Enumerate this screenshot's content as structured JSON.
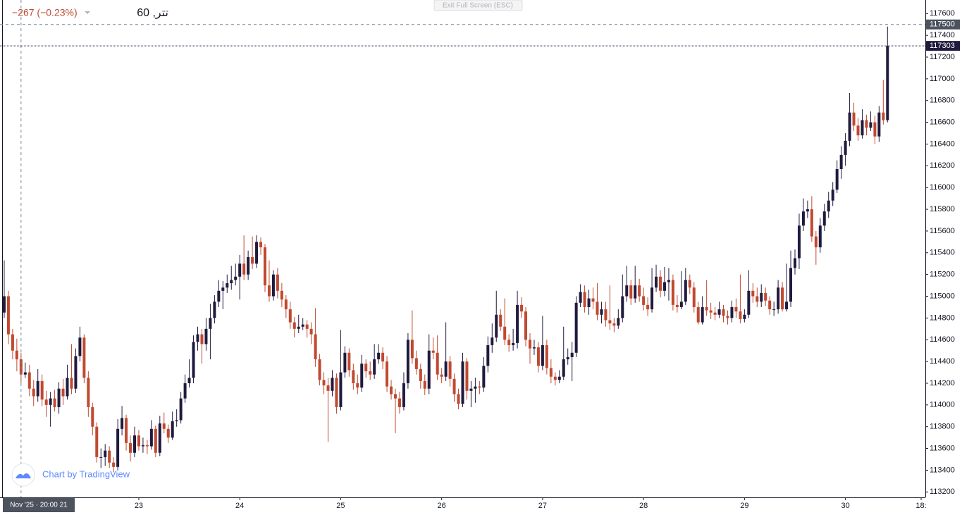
{
  "chart_data": {
    "type": "candlestick",
    "title": "تتر, 60",
    "change": "−267 (−0.23%)",
    "button": "Exit Full Screen (ESC)",
    "watermark": "Chart by TradingView",
    "up_color": "#1f1a3e",
    "down_color": "#c0492f",
    "ylim": [
      113150,
      117725
    ],
    "yticks": [
      113200,
      113400,
      113600,
      113800,
      114000,
      114200,
      114400,
      114600,
      114800,
      115000,
      115200,
      115400,
      115600,
      115800,
      116000,
      116200,
      116400,
      116600,
      116800,
      117000,
      117200,
      117400,
      117600
    ],
    "xlim": [
      -1,
      219
    ],
    "xticks": [
      {
        "value": 32,
        "label": "23"
      },
      {
        "value": 56,
        "label": "24"
      },
      {
        "value": 80,
        "label": "25"
      },
      {
        "value": 104,
        "label": "26"
      },
      {
        "value": 128,
        "label": "27"
      },
      {
        "value": 152,
        "label": "28"
      },
      {
        "value": 176,
        "label": "29"
      },
      {
        "value": 200,
        "label": "30"
      },
      {
        "value": 218,
        "label": "18:"
      }
    ],
    "crosshair": {
      "x": 4,
      "y": 117500,
      "label": "Nov '25 · 20:00 21"
    },
    "candles": [
      [
        114850,
        115330,
        114800,
        115000
      ],
      [
        115000,
        115050,
        114560,
        114650
      ],
      [
        114650,
        114700,
        114420,
        114500
      ],
      [
        114500,
        114610,
        114310,
        114420
      ],
      [
        114420,
        114480,
        114200,
        114280
      ],
      [
        114280,
        114390,
        114250,
        114300
      ],
      [
        114300,
        114370,
        114080,
        114150
      ],
      [
        114150,
        114230,
        113990,
        114080
      ],
      [
        114080,
        114330,
        114030,
        114220
      ],
      [
        114220,
        114280,
        113990,
        114050
      ],
      [
        114050,
        114130,
        113890,
        114000
      ],
      [
        114000,
        114120,
        113800,
        114060
      ],
      [
        114060,
        114140,
        113940,
        113980
      ],
      [
        113980,
        114210,
        113920,
        114150
      ],
      [
        114150,
        114240,
        114000,
        114080
      ],
      [
        114080,
        114370,
        114050,
        114250
      ],
      [
        114250,
        114560,
        114100,
        114150
      ],
      [
        114150,
        114520,
        114110,
        114450
      ],
      [
        114450,
        114720,
        114400,
        114620
      ],
      [
        114620,
        114650,
        114200,
        114250
      ],
      [
        114250,
        114310,
        113890,
        113980
      ],
      [
        113980,
        114020,
        113720,
        113800
      ],
      [
        113800,
        113840,
        113470,
        113520
      ],
      [
        113520,
        113600,
        113420,
        113520
      ],
      [
        113520,
        113640,
        113440,
        113580
      ],
      [
        113580,
        113620,
        113420,
        113470
      ],
      [
        113470,
        113520,
        113380,
        113430
      ],
      [
        113430,
        113870,
        113400,
        113780
      ],
      [
        113780,
        113990,
        113720,
        113880
      ],
      [
        113880,
        113910,
        113580,
        113650
      ],
      [
        113650,
        113720,
        113480,
        113560
      ],
      [
        113560,
        113800,
        113520,
        113720
      ],
      [
        113720,
        113770,
        113580,
        113620
      ],
      [
        113620,
        113700,
        113560,
        113630
      ],
      [
        113630,
        113680,
        113550,
        113620
      ],
      [
        113620,
        113860,
        113590,
        113780
      ],
      [
        113780,
        113810,
        113520,
        113560
      ],
      [
        113560,
        113900,
        113530,
        113830
      ],
      [
        113830,
        113930,
        113740,
        113780
      ],
      [
        113780,
        113820,
        113650,
        113700
      ],
      [
        113700,
        113940,
        113680,
        113850
      ],
      [
        113850,
        113960,
        113800,
        113860
      ],
      [
        113860,
        114120,
        113830,
        114060
      ],
      [
        114060,
        114280,
        114020,
        114200
      ],
      [
        114200,
        114420,
        114160,
        114250
      ],
      [
        114250,
        114640,
        114200,
        114580
      ],
      [
        114580,
        114720,
        114500,
        114650
      ],
      [
        114650,
        114700,
        114380,
        114560
      ],
      [
        114560,
        114800,
        114500,
        114700
      ],
      [
        114700,
        114930,
        114420,
        114800
      ],
      [
        114800,
        115010,
        114750,
        114950
      ],
      [
        114950,
        115150,
        114900,
        115050
      ],
      [
        115050,
        115140,
        114880,
        115080
      ],
      [
        115080,
        115200,
        115030,
        115120
      ],
      [
        115120,
        115280,
        115060,
        115150
      ],
      [
        115150,
        115300,
        115100,
        115180
      ],
      [
        115180,
        115380,
        114970,
        115300
      ],
      [
        115300,
        115560,
        115150,
        115200
      ],
      [
        115200,
        115420,
        115150,
        115360
      ],
      [
        115360,
        115550,
        115250,
        115300
      ],
      [
        115300,
        115560,
        115260,
        115500
      ],
      [
        115500,
        115540,
        115380,
        115450
      ],
      [
        115450,
        115480,
        115040,
        115100
      ],
      [
        115100,
        115330,
        114950,
        115000
      ],
      [
        115000,
        115240,
        114960,
        115200
      ],
      [
        115200,
        115260,
        114980,
        115050
      ],
      [
        115050,
        115120,
        114900,
        114970
      ],
      [
        114970,
        115010,
        114800,
        114880
      ],
      [
        114880,
        114950,
        114700,
        114760
      ],
      [
        114760,
        114810,
        114620,
        114700
      ],
      [
        114700,
        114830,
        114660,
        114720
      ],
      [
        114720,
        114800,
        114690,
        114740
      ],
      [
        114740,
        114780,
        114620,
        114700
      ],
      [
        114700,
        114760,
        114560,
        114650
      ],
      [
        114650,
        114890,
        114350,
        114420
      ],
      [
        114420,
        114470,
        114180,
        114230
      ],
      [
        114230,
        114300,
        114100,
        114180
      ],
      [
        114180,
        114250,
        113660,
        114130
      ],
      [
        114130,
        114320,
        114080,
        114250
      ],
      [
        114250,
        114290,
        113920,
        113980
      ],
      [
        113980,
        114690,
        113950,
        114300
      ],
      [
        114300,
        114540,
        114250,
        114480
      ],
      [
        114480,
        114520,
        114260,
        114320
      ],
      [
        114320,
        114380,
        114140,
        114200
      ],
      [
        114200,
        114280,
        114100,
        114160
      ],
      [
        114160,
        114460,
        114120,
        114380
      ],
      [
        114380,
        114420,
        114250,
        114310
      ],
      [
        114310,
        114400,
        114230,
        114280
      ],
      [
        114280,
        114560,
        114240,
        114420
      ],
      [
        114420,
        114560,
        114380,
        114480
      ],
      [
        114480,
        114530,
        114330,
        114400
      ],
      [
        114400,
        114450,
        114120,
        114170
      ],
      [
        114170,
        114230,
        114050,
        114100
      ],
      [
        114100,
        114150,
        113740,
        114060
      ],
      [
        114060,
        114120,
        113920,
        113980
      ],
      [
        113980,
        114300,
        113950,
        114200
      ],
      [
        114200,
        114660,
        114150,
        114600
      ],
      [
        114600,
        114870,
        114380,
        114430
      ],
      [
        114430,
        114500,
        114280,
        114330
      ],
      [
        114330,
        114380,
        114150,
        114220
      ],
      [
        114220,
        114280,
        114090,
        114150
      ],
      [
        114150,
        114650,
        114100,
        114500
      ],
      [
        114500,
        114620,
        114420,
        114480
      ],
      [
        114480,
        114640,
        114230,
        114280
      ],
      [
        114280,
        114340,
        114200,
        114260
      ],
      [
        114260,
        114760,
        114220,
        114400
      ],
      [
        114400,
        114450,
        114170,
        114240
      ],
      [
        114240,
        114290,
        114030,
        114100
      ],
      [
        114100,
        114150,
        113960,
        114010
      ],
      [
        114010,
        114480,
        113980,
        114400
      ],
      [
        114400,
        114430,
        114050,
        114130
      ],
      [
        114130,
        114220,
        113980,
        114150
      ],
      [
        114150,
        114250,
        114020,
        114170
      ],
      [
        114170,
        114220,
        114100,
        114160
      ],
      [
        114160,
        114440,
        114120,
        114360
      ],
      [
        114360,
        114630,
        114300,
        114550
      ],
      [
        114550,
        114750,
        114480,
        114620
      ],
      [
        114620,
        115050,
        114580,
        114830
      ],
      [
        114830,
        114880,
        114680,
        114720
      ],
      [
        114720,
        114980,
        114550,
        114600
      ],
      [
        114600,
        114650,
        114490,
        114550
      ],
      [
        114550,
        114700,
        114500,
        114570
      ],
      [
        114570,
        115050,
        114520,
        114920
      ],
      [
        114920,
        114990,
        114800,
        114860
      ],
      [
        114860,
        114900,
        114540,
        114600
      ],
      [
        114600,
        114660,
        114380,
        114520
      ],
      [
        114520,
        114600,
        114460,
        114530
      ],
      [
        114530,
        114580,
        114300,
        114360
      ],
      [
        114360,
        114820,
        114320,
        114550
      ],
      [
        114550,
        114600,
        114280,
        114340
      ],
      [
        114340,
        114420,
        114200,
        114260
      ],
      [
        114260,
        114300,
        114180,
        114230
      ],
      [
        114230,
        114320,
        114200,
        114260
      ],
      [
        114260,
        114720,
        114230,
        114420
      ],
      [
        114420,
        114520,
        114370,
        114440
      ],
      [
        114440,
        114580,
        114220,
        114480
      ],
      [
        114480,
        115000,
        114440,
        114940
      ],
      [
        114940,
        115110,
        114900,
        115040
      ],
      [
        115040,
        115100,
        114850,
        114900
      ],
      [
        114900,
        115060,
        114830,
        114980
      ],
      [
        114980,
        115080,
        114880,
        114950
      ],
      [
        114950,
        115120,
        114780,
        114830
      ],
      [
        114830,
        114950,
        114750,
        114880
      ],
      [
        114880,
        114950,
        114720,
        114780
      ],
      [
        114780,
        115100,
        114690,
        114750
      ],
      [
        114750,
        114800,
        114670,
        114730
      ],
      [
        114730,
        114880,
        114700,
        114800
      ],
      [
        114800,
        115200,
        114760,
        115000
      ],
      [
        115000,
        115280,
        114950,
        115100
      ],
      [
        115100,
        115150,
        114920,
        114980
      ],
      [
        114980,
        115280,
        114940,
        115100
      ],
      [
        115100,
        115160,
        114950,
        115000
      ],
      [
        115000,
        115080,
        114870,
        114920
      ],
      [
        114920,
        114990,
        114820,
        114880
      ],
      [
        114880,
        115260,
        114850,
        115080
      ],
      [
        115080,
        115290,
        115040,
        115180
      ],
      [
        115180,
        115240,
        114990,
        115050
      ],
      [
        115050,
        115270,
        115000,
        115130
      ],
      [
        115130,
        115260,
        114960,
        115150
      ],
      [
        115150,
        115200,
        114870,
        114920
      ],
      [
        114920,
        115010,
        114850,
        114900
      ],
      [
        114900,
        115230,
        114880,
        114950
      ],
      [
        114950,
        115260,
        114920,
        115150
      ],
      [
        115150,
        115200,
        115020,
        115080
      ],
      [
        115080,
        115130,
        114850,
        114900
      ],
      [
        114900,
        114950,
        114740,
        114760
      ],
      [
        114760,
        115000,
        114740,
        114900
      ],
      [
        114900,
        115150,
        114820,
        114870
      ],
      [
        114870,
        114940,
        114790,
        114850
      ],
      [
        114850,
        114900,
        114780,
        114830
      ],
      [
        114830,
        114950,
        114800,
        114880
      ],
      [
        114880,
        114920,
        114760,
        114820
      ],
      [
        114820,
        114870,
        114740,
        114800
      ],
      [
        114800,
        114960,
        114760,
        114900
      ],
      [
        114900,
        114980,
        114800,
        114860
      ],
      [
        114860,
        115200,
        114750,
        114790
      ],
      [
        114790,
        114880,
        114760,
        114830
      ],
      [
        114830,
        115240,
        114800,
        115050
      ],
      [
        115050,
        115120,
        114940,
        115000
      ],
      [
        115000,
        115080,
        114900,
        114950
      ],
      [
        114950,
        115110,
        114900,
        115030
      ],
      [
        115030,
        115080,
        114910,
        114960
      ],
      [
        114960,
        115000,
        114830,
        114880
      ],
      [
        114880,
        114950,
        114820,
        114880
      ],
      [
        114880,
        115150,
        114840,
        115080
      ],
      [
        115080,
        115130,
        114860,
        114880
      ],
      [
        114880,
        115300,
        114860,
        114950
      ],
      [
        114950,
        115420,
        114900,
        115260
      ],
      [
        115260,
        115430,
        115200,
        115350
      ],
      [
        115350,
        115760,
        115250,
        115650
      ],
      [
        115650,
        115900,
        115600,
        115780
      ],
      [
        115780,
        115880,
        115720,
        115800
      ],
      [
        115800,
        115920,
        115500,
        115550
      ],
      [
        115550,
        115600,
        115290,
        115450
      ],
      [
        115450,
        115720,
        115400,
        115650
      ],
      [
        115650,
        115850,
        115600,
        115780
      ],
      [
        115780,
        115960,
        115720,
        115880
      ],
      [
        115880,
        116050,
        115830,
        115980
      ],
      [
        115980,
        116250,
        115950,
        116170
      ],
      [
        116170,
        116380,
        116080,
        116300
      ],
      [
        116300,
        116500,
        116200,
        116430
      ],
      [
        116430,
        116870,
        116380,
        116690
      ],
      [
        116690,
        116780,
        116520,
        116570
      ],
      [
        116570,
        116640,
        116430,
        116480
      ],
      [
        116480,
        116720,
        116450,
        116620
      ],
      [
        116620,
        116670,
        116480,
        116550
      ],
      [
        116550,
        116700,
        116520,
        116600
      ],
      [
        116600,
        116660,
        116400,
        116470
      ],
      [
        116470,
        116750,
        116420,
        116690
      ],
      [
        116690,
        116990,
        116580,
        116620
      ],
      [
        116620,
        117480,
        116600,
        117303
      ]
    ]
  }
}
